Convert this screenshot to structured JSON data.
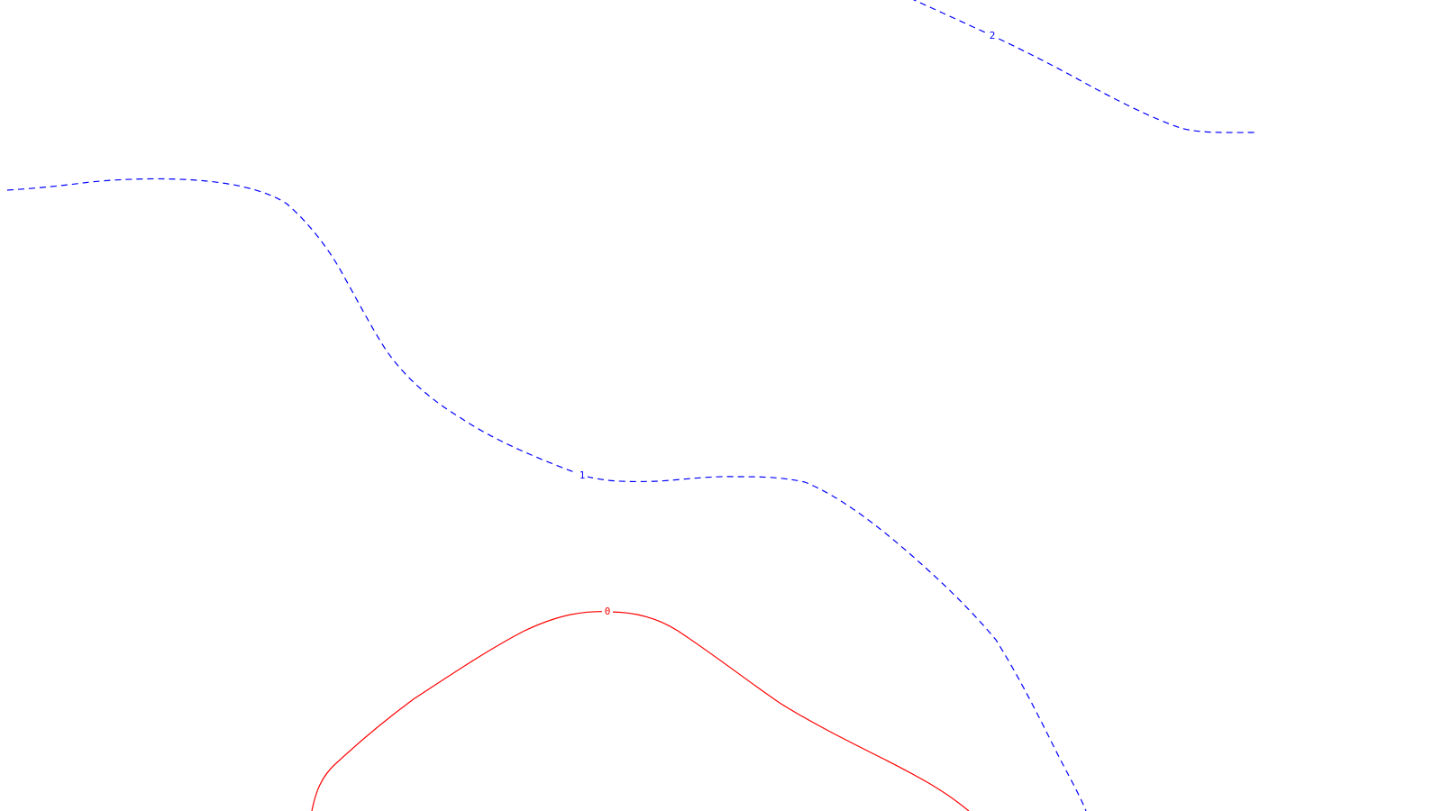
{
  "contour_map": {
    "levels": [
      {
        "level": 0,
        "label": "0",
        "color": "#ff0000",
        "style": "solid"
      },
      {
        "level": 1,
        "label": "1",
        "color": "#0000ff",
        "style": "dashed"
      },
      {
        "level": 2,
        "label": "2",
        "color": "#0000ff",
        "style": "dashed"
      }
    ]
  }
}
